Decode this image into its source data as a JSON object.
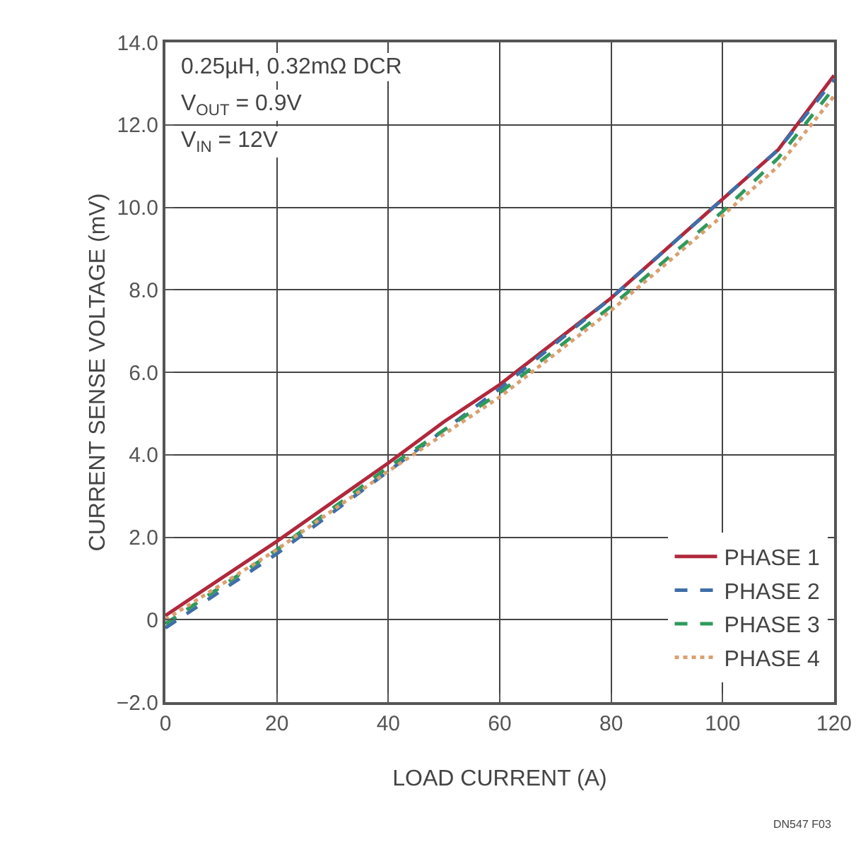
{
  "chart_data": {
    "type": "line",
    "xlabel": "LOAD CURRENT (A)",
    "ylabel": "CURRENT SENSE VOLTAGE (mV)",
    "x": [
      0,
      20,
      40,
      50,
      60,
      80,
      100,
      110,
      120
    ],
    "series": [
      {
        "name": "PHASE 1",
        "color": "#b0283c",
        "line_style": "solid",
        "values": [
          0.1,
          1.9,
          3.8,
          4.8,
          5.7,
          7.8,
          10.2,
          11.4,
          13.2
        ]
      },
      {
        "name": "PHASE 2",
        "color": "#3f6fa8",
        "line_style": "dashed",
        "values": [
          -0.2,
          1.6,
          3.6,
          4.6,
          5.6,
          7.8,
          10.2,
          11.4,
          13.1
        ]
      },
      {
        "name": "PHASE 3",
        "color": "#2e9a5c",
        "line_style": "dashed",
        "values": [
          -0.1,
          1.7,
          3.7,
          4.6,
          5.5,
          7.6,
          9.9,
          11.2,
          12.9
        ]
      },
      {
        "name": "PHASE 4",
        "color": "#d9a070",
        "line_style": "dotted",
        "values": [
          0.0,
          1.7,
          3.6,
          4.5,
          5.4,
          7.5,
          9.8,
          11.0,
          12.7
        ]
      }
    ],
    "xlim": [
      0,
      120
    ],
    "xticks": [
      0,
      20,
      40,
      60,
      80,
      100,
      120
    ],
    "ylim": [
      -2,
      14
    ],
    "yticks": [
      {
        "value": -2,
        "label": "−2.0"
      },
      {
        "value": 0,
        "label": "0"
      },
      {
        "value": 2,
        "label": "2.0"
      },
      {
        "value": 4,
        "label": "4.0"
      },
      {
        "value": 6,
        "label": "6.0"
      },
      {
        "value": 8,
        "label": "8.0"
      },
      {
        "value": 10,
        "label": "10.0"
      },
      {
        "value": 12,
        "label": "12.0"
      },
      {
        "value": 14,
        "label": "14.0"
      }
    ],
    "grid": true,
    "legend": "bottom right",
    "marker": "none",
    "annotations": [
      "0.25µH, 0.32mΩ DCR",
      "V$_{OUT}$ = 0.9V",
      "V$_{IN}$ = 12V",
      "DN547 F03"
    ]
  }
}
